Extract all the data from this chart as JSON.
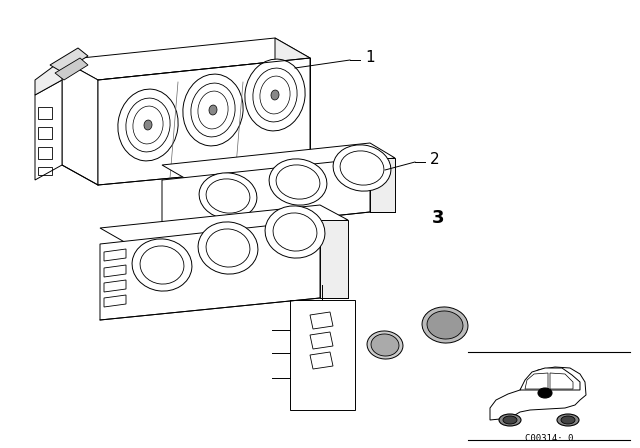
{
  "background_color": "#ffffff",
  "line_color": "#000000",
  "label_1": "1",
  "label_2": "2",
  "label_3": "3",
  "part_number": "C00314· 0",
  "fig_width": 6.4,
  "fig_height": 4.48,
  "dpi": 100
}
